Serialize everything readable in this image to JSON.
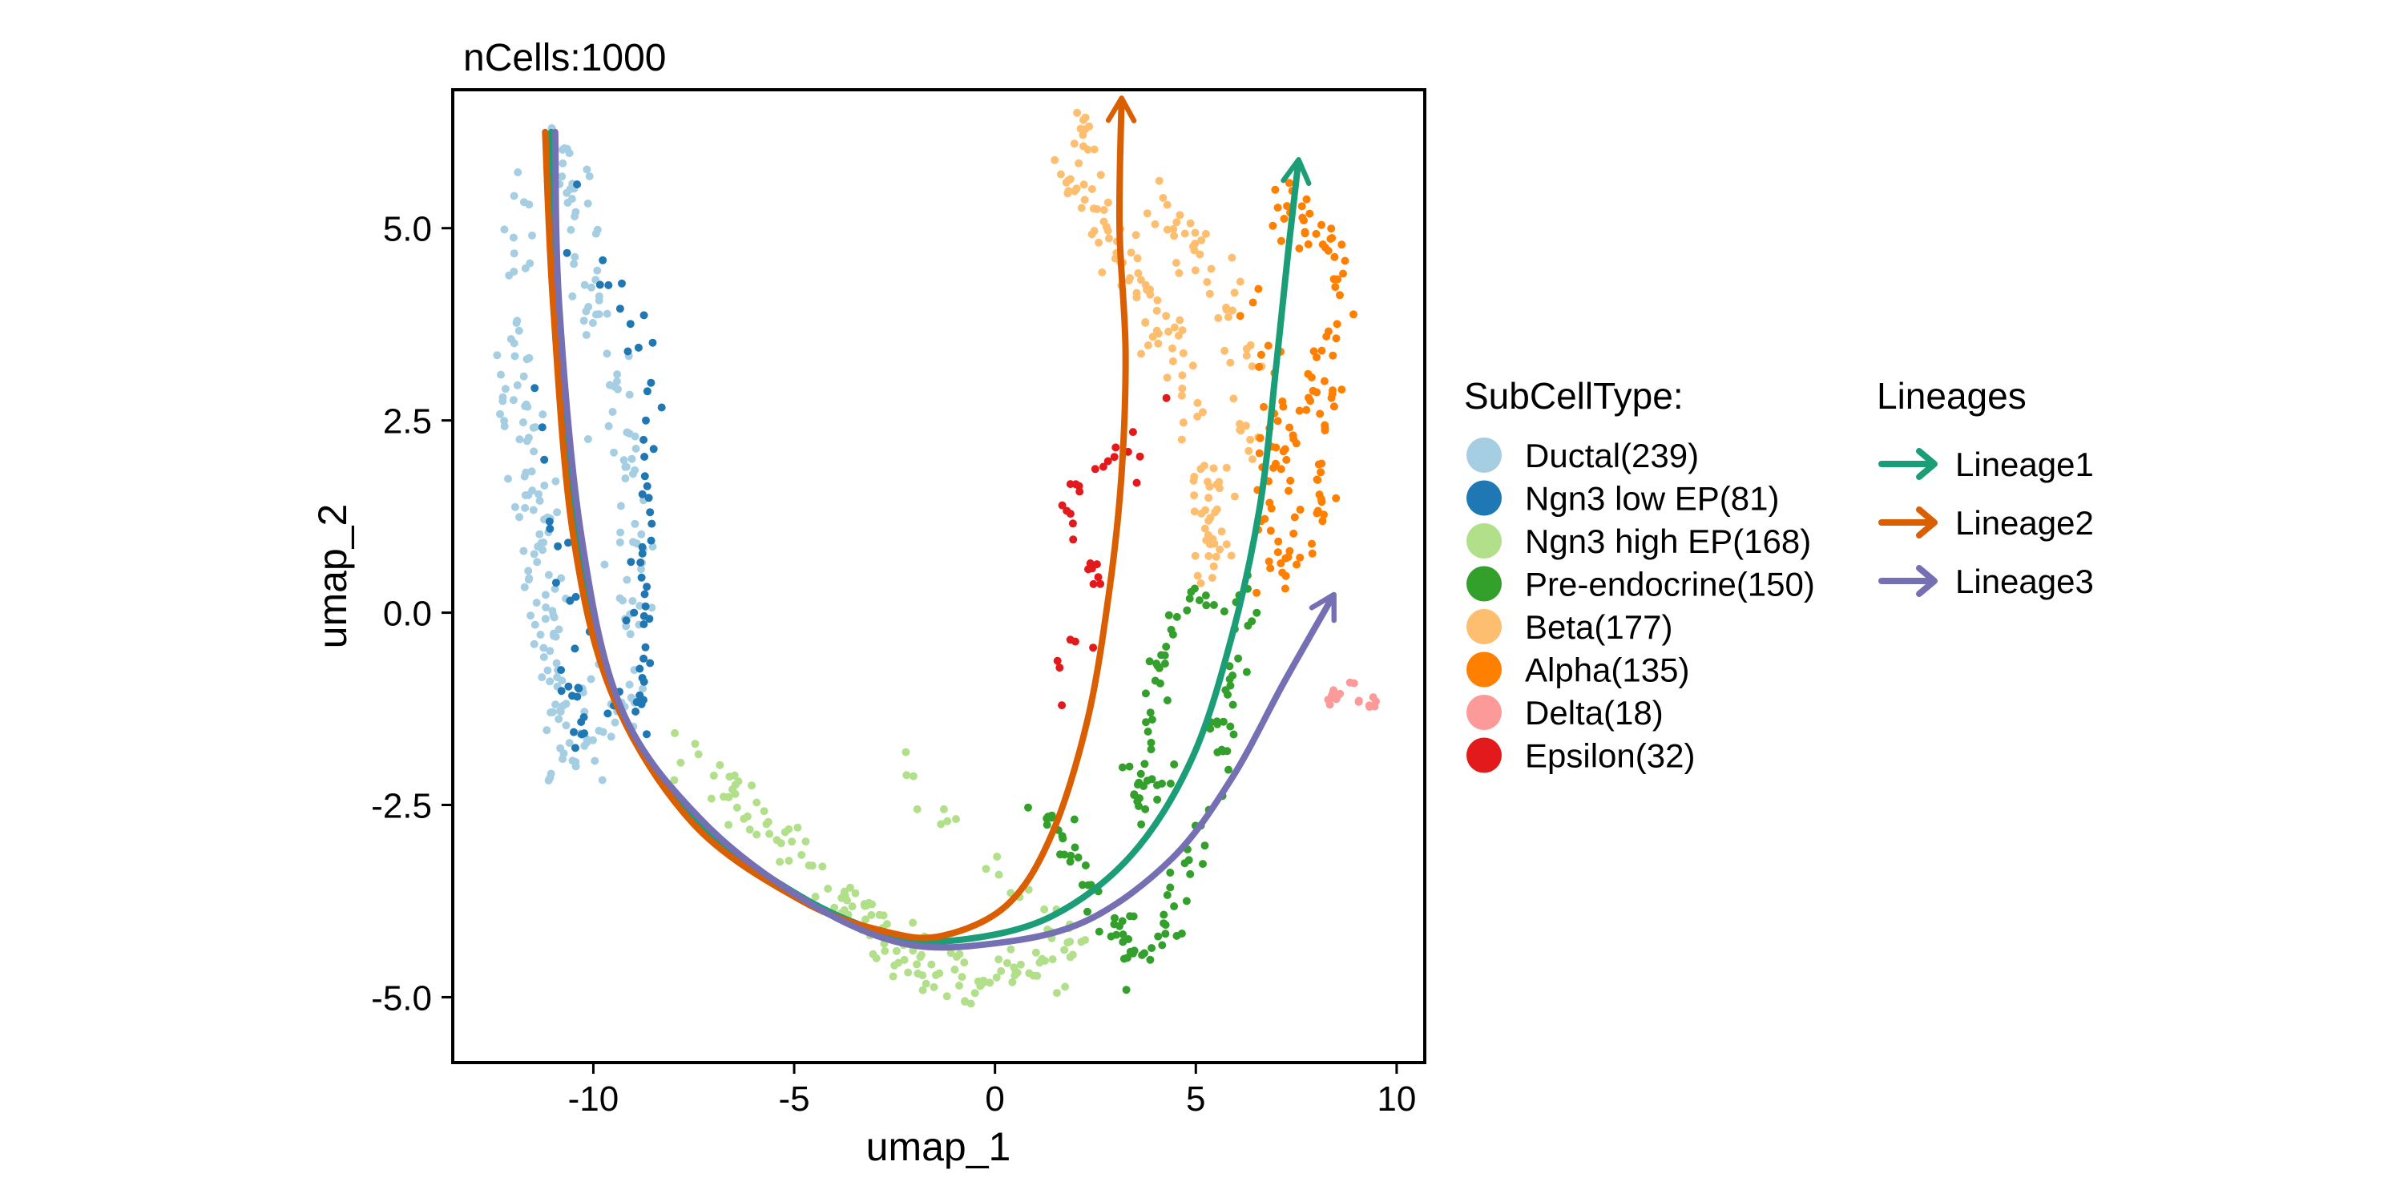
{
  "chart_data": {
    "type": "scatter",
    "title": "nCells:1000",
    "xlabel": "umap_1",
    "ylabel": "umap_2",
    "xlim": [
      -13.5,
      10.7
    ],
    "ylim": [
      -5.85,
      6.8
    ],
    "x_ticks": [
      -10,
      -5,
      0,
      5,
      10
    ],
    "x_tick_labels": [
      "-10",
      "-5",
      "0",
      "5",
      "10"
    ],
    "y_ticks": [
      -5,
      -2.5,
      0,
      2.5,
      5
    ],
    "y_tick_labels": [
      "-5.0",
      "-2.5",
      "0.0",
      "2.5",
      "5.0"
    ],
    "grid": false,
    "legend_position": "right",
    "legend_title": "SubCellType:",
    "series": [
      {
        "name": "Ductal(239)",
        "label": "Ductal",
        "count": 239,
        "color": "#A6CEE3",
        "region": {
          "type": "polyline",
          "path": [
            [
              -11.8,
              5.4
            ],
            [
              -11.7,
              4.2
            ],
            [
              -12.0,
              3.0
            ],
            [
              -11.6,
              2.0
            ],
            [
              -11.3,
              1.0
            ],
            [
              -11.2,
              0.0
            ],
            [
              -11.0,
              -1.0
            ],
            [
              -10.8,
              -1.9
            ],
            [
              -9.8,
              -1.6
            ],
            [
              -9.2,
              -0.8
            ],
            [
              -9.0,
              0.4
            ],
            [
              -9.2,
              1.8
            ],
            [
              -9.5,
              3.0
            ],
            [
              -9.9,
              4.2
            ],
            [
              -10.4,
              5.4
            ],
            [
              -10.9,
              6.2
            ]
          ],
          "spread": [
            0.55,
            0.7
          ]
        }
      },
      {
        "name": "Ngn3 low EP(81)",
        "label": "Ngn3 low EP",
        "count": 81,
        "color": "#1F78B4",
        "region": {
          "type": "polyline",
          "path": [
            [
              -11.6,
              4.0
            ],
            [
              -10.2,
              5.1
            ],
            [
              -9.5,
              4.0
            ],
            [
              -8.6,
              3.2
            ],
            [
              -8.5,
              2.2
            ],
            [
              -8.6,
              1.0
            ],
            [
              -8.8,
              0.1
            ],
            [
              -8.7,
              -1.1
            ],
            [
              -9.4,
              -1.4
            ],
            [
              -10.5,
              -1.6
            ],
            [
              -10.4,
              -0.6
            ],
            [
              -11.0,
              1.2
            ],
            [
              -11.4,
              2.8
            ]
          ],
          "spread": [
            0.35,
            0.45
          ]
        }
      },
      {
        "name": "Ngn3 high EP(168)",
        "label": "Ngn3 high EP",
        "count": 168,
        "color": "#B2DF8A",
        "region": {
          "type": "polyline",
          "path": [
            [
              -7.9,
              -1.7
            ],
            [
              -6.5,
              -2.4
            ],
            [
              -5.2,
              -3.0
            ],
            [
              -4.0,
              -3.6
            ],
            [
              -3.0,
              -4.1
            ],
            [
              -2.0,
              -4.5
            ],
            [
              -1.0,
              -4.8
            ],
            [
              0.0,
              -4.8
            ],
            [
              1.0,
              -4.6
            ],
            [
              2.0,
              -4.3
            ],
            [
              -2.3,
              -2.1
            ]
          ],
          "spread": [
            0.45,
            0.38
          ]
        }
      },
      {
        "name": "Pre-endocrine(150)",
        "label": "Pre-endocrine",
        "count": 150,
        "color": "#33A02C",
        "region": {
          "type": "polyline",
          "path": [
            [
              1.2,
              -2.5
            ],
            [
              2.0,
              -3.2
            ],
            [
              3.0,
              -4.0
            ],
            [
              3.3,
              -4.6
            ],
            [
              4.3,
              -4.1
            ],
            [
              4.8,
              -3.3
            ],
            [
              5.4,
              -2.4
            ],
            [
              5.8,
              -1.4
            ],
            [
              6.2,
              -0.4
            ],
            [
              6.3,
              0.3
            ],
            [
              4.8,
              0.3
            ],
            [
              4.2,
              -0.6
            ],
            [
              3.8,
              -1.8
            ],
            [
              3.4,
              -2.6
            ],
            [
              7.0,
              -1.0
            ]
          ],
          "spread": [
            0.4,
            0.4
          ]
        }
      },
      {
        "name": "Beta(177)",
        "label": "Beta",
        "count": 177,
        "color": "#FDBF6F",
        "region": {
          "type": "polyline",
          "path": [
            [
              2.2,
              6.4
            ],
            [
              2.0,
              5.6
            ],
            [
              2.6,
              5.1
            ],
            [
              3.4,
              4.6
            ],
            [
              4.0,
              3.8
            ],
            [
              4.7,
              3.0
            ],
            [
              5.1,
              2.1
            ],
            [
              5.3,
              1.2
            ],
            [
              5.3,
              0.5
            ],
            [
              6.3,
              2.3
            ],
            [
              6.0,
              3.7
            ],
            [
              5.4,
              4.6
            ],
            [
              4.0,
              5.2
            ]
          ],
          "spread": [
            0.5,
            0.45
          ]
        }
      },
      {
        "name": "Alpha(135)",
        "label": "Alpha",
        "count": 135,
        "color": "#FF7F00",
        "region": {
          "type": "polyline",
          "path": [
            [
              7.0,
              5.1
            ],
            [
              7.6,
              5.2
            ],
            [
              8.2,
              4.8
            ],
            [
              8.7,
              4.3
            ],
            [
              8.3,
              3.5
            ],
            [
              7.8,
              2.9
            ],
            [
              7.1,
              2.4
            ],
            [
              6.6,
              1.6
            ],
            [
              6.8,
              0.6
            ],
            [
              7.7,
              0.7
            ],
            [
              8.2,
              1.8
            ],
            [
              8.4,
              2.8
            ],
            [
              6.4,
              3.9
            ],
            [
              8.0,
              0.2
            ]
          ],
          "spread": [
            0.45,
            0.4
          ]
        }
      },
      {
        "name": "Delta(18)",
        "label": "Delta",
        "count": 18,
        "color": "#FB9A99",
        "region": {
          "type": "polyline",
          "path": [
            [
              7.9,
              -1.2
            ],
            [
              8.4,
              -1.1
            ],
            [
              8.8,
              -0.9
            ],
            [
              9.2,
              -1.2
            ],
            [
              9.5,
              -1.1
            ]
          ],
          "spread": [
            0.15,
            0.12
          ]
        }
      },
      {
        "name": "Epsilon(32)",
        "label": "Epsilon",
        "count": 32,
        "color": "#E31A1C",
        "region": {
          "type": "polyline",
          "path": [
            [
              3.5,
              2.5
            ],
            [
              3.0,
              2.0
            ],
            [
              2.4,
              1.8
            ],
            [
              1.8,
              1.4
            ],
            [
              2.0,
              0.8
            ],
            [
              2.7,
              0.6
            ],
            [
              2.4,
              0.0
            ],
            [
              1.9,
              -0.4
            ],
            [
              1.6,
              -1.2
            ],
            [
              4.9,
              3.6
            ]
          ],
          "spread": [
            0.2,
            0.22
          ]
        }
      }
    ],
    "lineages_title": "Lineages",
    "lineages": [
      {
        "name": "Lineage1",
        "color": "#1B9E77",
        "points": [
          [
            -11.05,
            6.25
          ],
          [
            -10.9,
            4.0
          ],
          [
            -10.4,
            1.0
          ],
          [
            -9.4,
            -1.2
          ],
          [
            -7.4,
            -2.7
          ],
          [
            -4.8,
            -3.7
          ],
          [
            -2.5,
            -4.2
          ],
          [
            -0.8,
            -4.25
          ],
          [
            1.4,
            -3.95
          ],
          [
            3.4,
            -3.15
          ],
          [
            4.9,
            -1.9
          ],
          [
            5.9,
            -0.3
          ],
          [
            6.6,
            1.4
          ],
          [
            7.0,
            3.2
          ],
          [
            7.3,
            4.7
          ],
          [
            7.55,
            5.85
          ]
        ]
      },
      {
        "name": "Lineage2",
        "color": "#D95F02",
        "points": [
          [
            -11.2,
            6.25
          ],
          [
            -11.0,
            4.0
          ],
          [
            -10.5,
            1.0
          ],
          [
            -9.5,
            -1.1
          ],
          [
            -7.5,
            -2.75
          ],
          [
            -4.8,
            -3.75
          ],
          [
            -2.7,
            -4.15
          ],
          [
            -1.3,
            -4.2
          ],
          [
            0.3,
            -3.8
          ],
          [
            1.4,
            -2.9
          ],
          [
            2.3,
            -1.4
          ],
          [
            2.85,
            0.3
          ],
          [
            3.15,
            1.8
          ],
          [
            3.25,
            3.4
          ],
          [
            3.1,
            5.0
          ],
          [
            3.15,
            6.65
          ]
        ]
      },
      {
        "name": "Lineage3",
        "color": "#7570B3",
        "points": [
          [
            -10.95,
            6.25
          ],
          [
            -10.85,
            4.0
          ],
          [
            -10.3,
            1.0
          ],
          [
            -9.3,
            -1.25
          ],
          [
            -7.3,
            -2.7
          ],
          [
            -4.7,
            -3.75
          ],
          [
            -2.3,
            -4.3
          ],
          [
            0.0,
            -4.3
          ],
          [
            2.3,
            -4.0
          ],
          [
            4.4,
            -3.2
          ],
          [
            5.9,
            -2.15
          ],
          [
            7.2,
            -0.9
          ],
          [
            8.4,
            0.2
          ]
        ]
      }
    ]
  }
}
